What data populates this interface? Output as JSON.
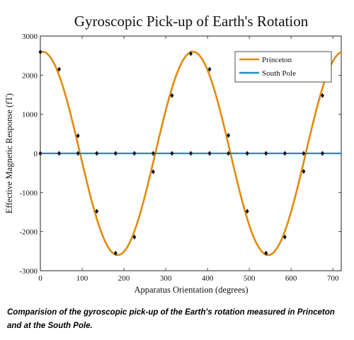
{
  "chart_data": {
    "type": "line",
    "title": "Gyroscopic Pick-up of Earth's Rotation",
    "xlabel": "Apparatus Orientation (degrees)",
    "ylabel": "Effective Magnetic Response (fT)",
    "xlim": [
      0,
      720
    ],
    "ylim": [
      -3000,
      3000
    ],
    "xticks": [
      0,
      100,
      200,
      300,
      400,
      500,
      600,
      700
    ],
    "yticks": [
      -3000,
      -2000,
      -1000,
      0,
      1000,
      2000,
      3000
    ],
    "legend_position": "top-right",
    "grid": false,
    "series": [
      {
        "name": "Princeton",
        "color": "#E08A0E",
        "curve": {
          "form": "amplitude*cos(x - phase)",
          "amplitude": 2600,
          "phase_deg": 365,
          "x_range": [
            0,
            720
          ]
        },
        "markers": {
          "x": [
            0,
            45,
            90,
            135,
            180,
            225,
            270,
            315,
            360,
            405,
            450,
            495,
            540,
            585,
            630,
            675
          ],
          "y": [
            2590,
            2150,
            450,
            -1480,
            -2550,
            -2140,
            -470,
            1480,
            2550,
            2150,
            460,
            -1480,
            -2550,
            -2140,
            -460,
            1480
          ]
        }
      },
      {
        "name": "South Pole",
        "color": "#1F8EC9",
        "x": [
          0,
          720
        ],
        "y": [
          0,
          0
        ],
        "markers": {
          "x": [
            0,
            45,
            90,
            135,
            180,
            225,
            270,
            315,
            360,
            405,
            450,
            495,
            540,
            585,
            630,
            675
          ],
          "y": [
            0,
            0,
            0,
            0,
            0,
            0,
            0,
            0,
            0,
            0,
            0,
            0,
            0,
            0,
            0,
            0
          ]
        }
      }
    ]
  },
  "caption": "Comparision of the gyroscopic pick-up of the Earth's rotation measured in Princeton and at the South Pole."
}
